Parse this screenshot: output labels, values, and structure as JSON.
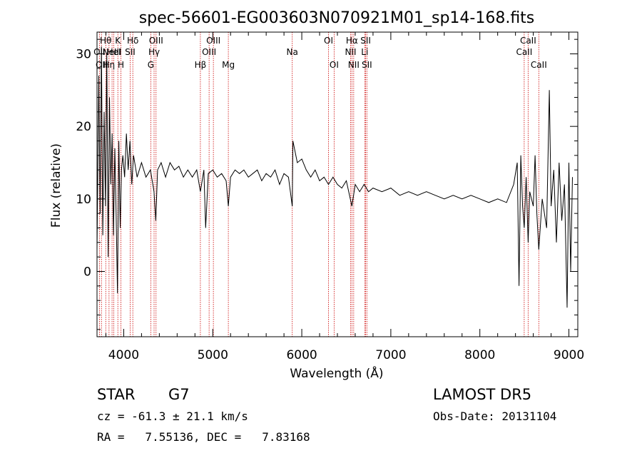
{
  "chart_data": {
    "type": "line",
    "title": "spec-56601-EG003603N070921M01_sp14-168.fits",
    "xlabel": "Wavelength (Å)",
    "ylabel": "Flux (relative)",
    "xlim": [
      3700,
      9100
    ],
    "ylim": [
      -9,
      33
    ],
    "x_ticks": [
      4000,
      5000,
      6000,
      7000,
      8000,
      9000
    ],
    "y_ticks": [
      0,
      10,
      20,
      30
    ],
    "line_color": "#000000",
    "marker_color": "#cc0000",
    "grid": false,
    "series": [
      {
        "values": [
          [
            3700,
            3
          ],
          [
            3720,
            27
          ],
          [
            3735,
            8
          ],
          [
            3750,
            31
          ],
          [
            3765,
            5
          ],
          [
            3780,
            22
          ],
          [
            3795,
            9
          ],
          [
            3810,
            30
          ],
          [
            3825,
            2
          ],
          [
            3840,
            24
          ],
          [
            3855,
            12
          ],
          [
            3870,
            19
          ],
          [
            3885,
            5
          ],
          [
            3900,
            17
          ],
          [
            3915,
            8
          ],
          [
            3930,
            -3
          ],
          [
            3945,
            18
          ],
          [
            3960,
            6
          ],
          [
            3975,
            14
          ],
          [
            3990,
            16
          ],
          [
            4010,
            13
          ],
          [
            4030,
            19
          ],
          [
            4050,
            14
          ],
          [
            4070,
            18
          ],
          [
            4090,
            12
          ],
          [
            4110,
            16
          ],
          [
            4150,
            13
          ],
          [
            4200,
            15
          ],
          [
            4250,
            13
          ],
          [
            4300,
            14
          ],
          [
            4340,
            11
          ],
          [
            4360,
            7
          ],
          [
            4380,
            14
          ],
          [
            4420,
            15
          ],
          [
            4470,
            13
          ],
          [
            4520,
            15
          ],
          [
            4570,
            14
          ],
          [
            4620,
            14.5
          ],
          [
            4670,
            13
          ],
          [
            4720,
            14
          ],
          [
            4770,
            13
          ],
          [
            4820,
            14
          ],
          [
            4861,
            11
          ],
          [
            4900,
            14
          ],
          [
            4920,
            6
          ],
          [
            4950,
            13.5
          ],
          [
            5000,
            14
          ],
          [
            5050,
            13
          ],
          [
            5100,
            13.5
          ],
          [
            5150,
            12.5
          ],
          [
            5175,
            9
          ],
          [
            5200,
            13
          ],
          [
            5250,
            14
          ],
          [
            5300,
            13.5
          ],
          [
            5350,
            14
          ],
          [
            5400,
            13
          ],
          [
            5450,
            13.5
          ],
          [
            5500,
            14
          ],
          [
            5550,
            12.5
          ],
          [
            5600,
            13.5
          ],
          [
            5650,
            13
          ],
          [
            5700,
            14
          ],
          [
            5750,
            12
          ],
          [
            5800,
            13.5
          ],
          [
            5850,
            13
          ],
          [
            5893,
            9
          ],
          [
            5900,
            18
          ],
          [
            5950,
            15
          ],
          [
            6000,
            15.5
          ],
          [
            6050,
            14
          ],
          [
            6100,
            13
          ],
          [
            6150,
            14
          ],
          [
            6200,
            12.5
          ],
          [
            6250,
            13
          ],
          [
            6300,
            12
          ],
          [
            6350,
            13
          ],
          [
            6400,
            12
          ],
          [
            6450,
            11.5
          ],
          [
            6500,
            12.5
          ],
          [
            6563,
            9
          ],
          [
            6600,
            12
          ],
          [
            6650,
            11
          ],
          [
            6700,
            12
          ],
          [
            6750,
            11
          ],
          [
            6800,
            11.5
          ],
          [
            6900,
            11
          ],
          [
            7000,
            11.5
          ],
          [
            7100,
            10.5
          ],
          [
            7200,
            11
          ],
          [
            7300,
            10.5
          ],
          [
            7400,
            11
          ],
          [
            7500,
            10.5
          ],
          [
            7600,
            10
          ],
          [
            7700,
            10.5
          ],
          [
            7800,
            10
          ],
          [
            7900,
            10.5
          ],
          [
            8000,
            10
          ],
          [
            8100,
            9.5
          ],
          [
            8200,
            10
          ],
          [
            8300,
            9.5
          ],
          [
            8380,
            12
          ],
          [
            8420,
            15
          ],
          [
            8440,
            -2
          ],
          [
            8460,
            16
          ],
          [
            8480,
            9
          ],
          [
            8498,
            6
          ],
          [
            8520,
            13
          ],
          [
            8542,
            4
          ],
          [
            8560,
            11
          ],
          [
            8600,
            9
          ],
          [
            8620,
            16
          ],
          [
            8640,
            8
          ],
          [
            8662,
            3
          ],
          [
            8700,
            10
          ],
          [
            8750,
            6
          ],
          [
            8780,
            25
          ],
          [
            8800,
            9
          ],
          [
            8830,
            14
          ],
          [
            8860,
            4
          ],
          [
            8890,
            15
          ],
          [
            8920,
            7
          ],
          [
            8950,
            12
          ],
          [
            8980,
            -5
          ],
          [
            9000,
            15
          ],
          [
            9020,
            0
          ],
          [
            9040,
            13
          ]
        ]
      }
    ],
    "line_markers": [
      {
        "wavelength": 3727,
        "label": "OII",
        "row": 2
      },
      {
        "wavelength": 3750,
        "label": "OII",
        "row": 3
      },
      {
        "wavelength": 3798,
        "label": "Hθ",
        "row": 1
      },
      {
        "wavelength": 3835,
        "label": "Hη",
        "row": 3
      },
      {
        "wavelength": 3869,
        "label": "NeIII",
        "row": 2
      },
      {
        "wavelength": 3889,
        "label": "HeI",
        "row": 2
      },
      {
        "wavelength": 3934,
        "label": "K",
        "row": 1
      },
      {
        "wavelength": 3969,
        "label": "H",
        "row": 3
      },
      {
        "wavelength": 4072,
        "label": "SII",
        "row": 2
      },
      {
        "wavelength": 4102,
        "label": "Hδ",
        "row": 1
      },
      {
        "wavelength": 4304,
        "label": "G",
        "row": 3
      },
      {
        "wavelength": 4341,
        "label": "Hγ",
        "row": 2
      },
      {
        "wavelength": 4363,
        "label": "OIII",
        "row": 1
      },
      {
        "wavelength": 4861,
        "label": "Hβ",
        "row": 3
      },
      {
        "wavelength": 4959,
        "label": "OIII",
        "row": 2
      },
      {
        "wavelength": 5007,
        "label": "OIII",
        "row": 1
      },
      {
        "wavelength": 5175,
        "label": "Mg",
        "row": 3
      },
      {
        "wavelength": 5893,
        "label": "Na",
        "row": 2
      },
      {
        "wavelength": 6300,
        "label": "OI",
        "row": 1
      },
      {
        "wavelength": 6363,
        "label": "OI",
        "row": 3
      },
      {
        "wavelength": 6548,
        "label": "NII",
        "row": 2
      },
      {
        "wavelength": 6563,
        "label": "Hα",
        "row": 1
      },
      {
        "wavelength": 6583,
        "label": "NII",
        "row": 3
      },
      {
        "wavelength": 6707,
        "label": "Li",
        "row": 2
      },
      {
        "wavelength": 6717,
        "label": "SII",
        "row": 1
      },
      {
        "wavelength": 6731,
        "label": "SII",
        "row": 3
      },
      {
        "wavelength": 8498,
        "label": "CaII",
        "row": 2
      },
      {
        "wavelength": 8542,
        "label": "CaII",
        "row": 1
      },
      {
        "wavelength": 8662,
        "label": "CaII",
        "row": 3
      }
    ]
  },
  "info": {
    "class": "STAR",
    "subclass": "G7",
    "survey": "LAMOST DR5",
    "cz": "cz = -61.3 ± 21.1 km/s",
    "obs_date": "Obs-Date: 20131104",
    "coords": "RA =   7.55136, DEC =   7.83168"
  }
}
